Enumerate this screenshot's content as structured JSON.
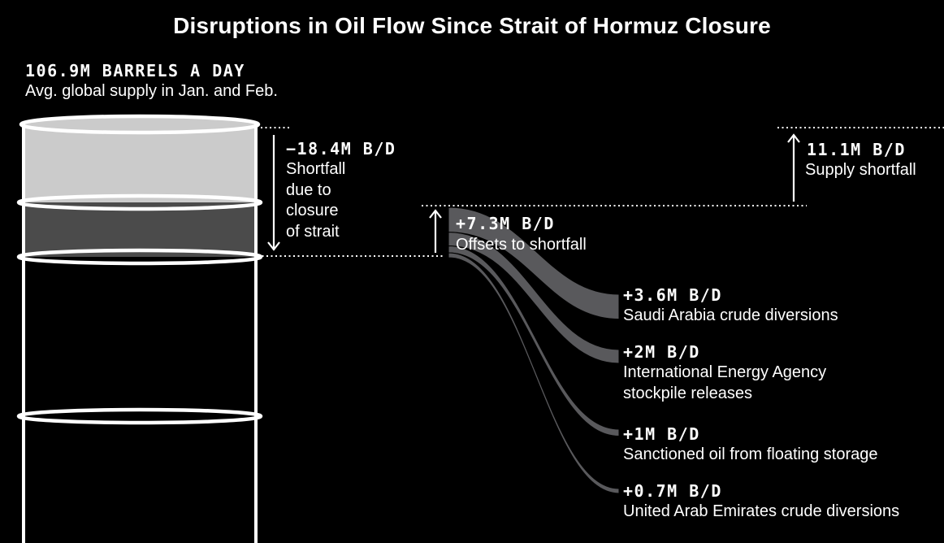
{
  "title": "Disruptions in Oil Flow Since Strait of Hormuz Closure",
  "annotations": {
    "supply": {
      "value": "106.9M BARRELS A DAY",
      "desc": "Avg. global supply in Jan. and Feb."
    },
    "shortfall": {
      "value": "−18.4M B/D",
      "desc_lines": [
        "Shortfall",
        "due to",
        "closure",
        "of strait"
      ]
    },
    "offsets_total": {
      "value": "+7.3M B/D",
      "desc": "Offsets to shortfall"
    },
    "remaining": {
      "value": "11.1M B/D",
      "desc": "Supply shortfall"
    }
  },
  "colors": {
    "background": "#000000",
    "barrel_light_gray": "#cbcbcb",
    "barrel_dark_gray": "#4b4b4b",
    "stream_gray": "#59595c",
    "text": "#ffffff"
  },
  "chart_data": {
    "type": "sankey",
    "title": "Disruptions in Oil Flow Since Strait of Hormuz Closure",
    "unit": "million barrels a day (M B/D)",
    "baseline_supply": 106.9,
    "baseline_supply_label": "106.9M BARRELS A DAY",
    "baseline_supply_desc": "Avg. global supply in Jan. and Feb.",
    "shortfall_due_to_closure": -18.4,
    "offsets_total": 7.3,
    "remaining_shortfall": 11.1,
    "offsets": [
      {
        "value": 3.6,
        "value_label": "+3.6M B/D",
        "label": "Saudi Arabia crude diversions",
        "desc_lines": [
          "Saudi Arabia crude diversions"
        ]
      },
      {
        "value": 2,
        "value_label": "+2M B/D",
        "label": "International Energy Agency stockpile releases",
        "desc_lines": [
          "International Energy Agency",
          "stockpile releases"
        ]
      },
      {
        "value": 1,
        "value_label": "+1M B/D",
        "label": "Sanctioned oil from floating storage",
        "desc_lines": [
          "Sanctioned oil from floating storage"
        ]
      },
      {
        "value": 0.7,
        "value_label": "+0.7M B/D",
        "label": "United Arab Emirates crude diversions",
        "desc_lines": [
          "United Arab Emirates crude diversions"
        ]
      }
    ]
  }
}
